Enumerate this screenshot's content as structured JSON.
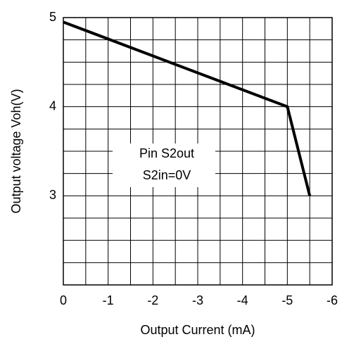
{
  "chart_data": {
    "type": "line",
    "x_label": "Output Current  (mA)",
    "y_label": "Output voltage Voh(V)",
    "annotation": [
      "Pin S2out",
      "S2in=0V"
    ],
    "x": [
      0,
      -5,
      -5.5
    ],
    "values": [
      4.95,
      4.0,
      3.0
    ],
    "color": "#000000",
    "xlim": [
      0,
      -6
    ],
    "xticks": [
      0,
      -1,
      -2,
      -3,
      -4,
      -5,
      -6
    ],
    "ylim": [
      2,
      5
    ],
    "yticks": [
      3,
      4,
      5
    ],
    "xgrid": [
      0,
      -0.5,
      -1,
      -1.5,
      -2,
      -2.5,
      -3,
      -3.5,
      -4,
      -4.5,
      -5,
      -5.5,
      -6
    ],
    "ygrid": [
      2,
      2.25,
      2.5,
      2.75,
      3,
      3.25,
      3.5,
      3.75,
      4,
      4.25,
      4.5,
      4.75,
      5
    ],
    "grid": true
  }
}
